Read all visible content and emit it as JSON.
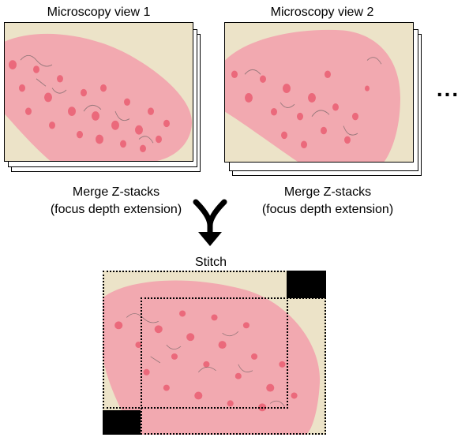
{
  "views": [
    {
      "title": "Microscopy view 1",
      "caption_line1": "Merge Z-stacks",
      "caption_line2": "(focus depth extension)"
    },
    {
      "title": "Microscopy view 2",
      "caption_line1": "Merge Z-stacks",
      "caption_line2": "(focus depth extension)"
    }
  ],
  "more_indicator": "...",
  "stitch_label": "Stitch",
  "colors": {
    "background": "#ece3c8",
    "tissue": "#f2a9b0",
    "cell": "#ea5f72",
    "outline": "#000000"
  }
}
